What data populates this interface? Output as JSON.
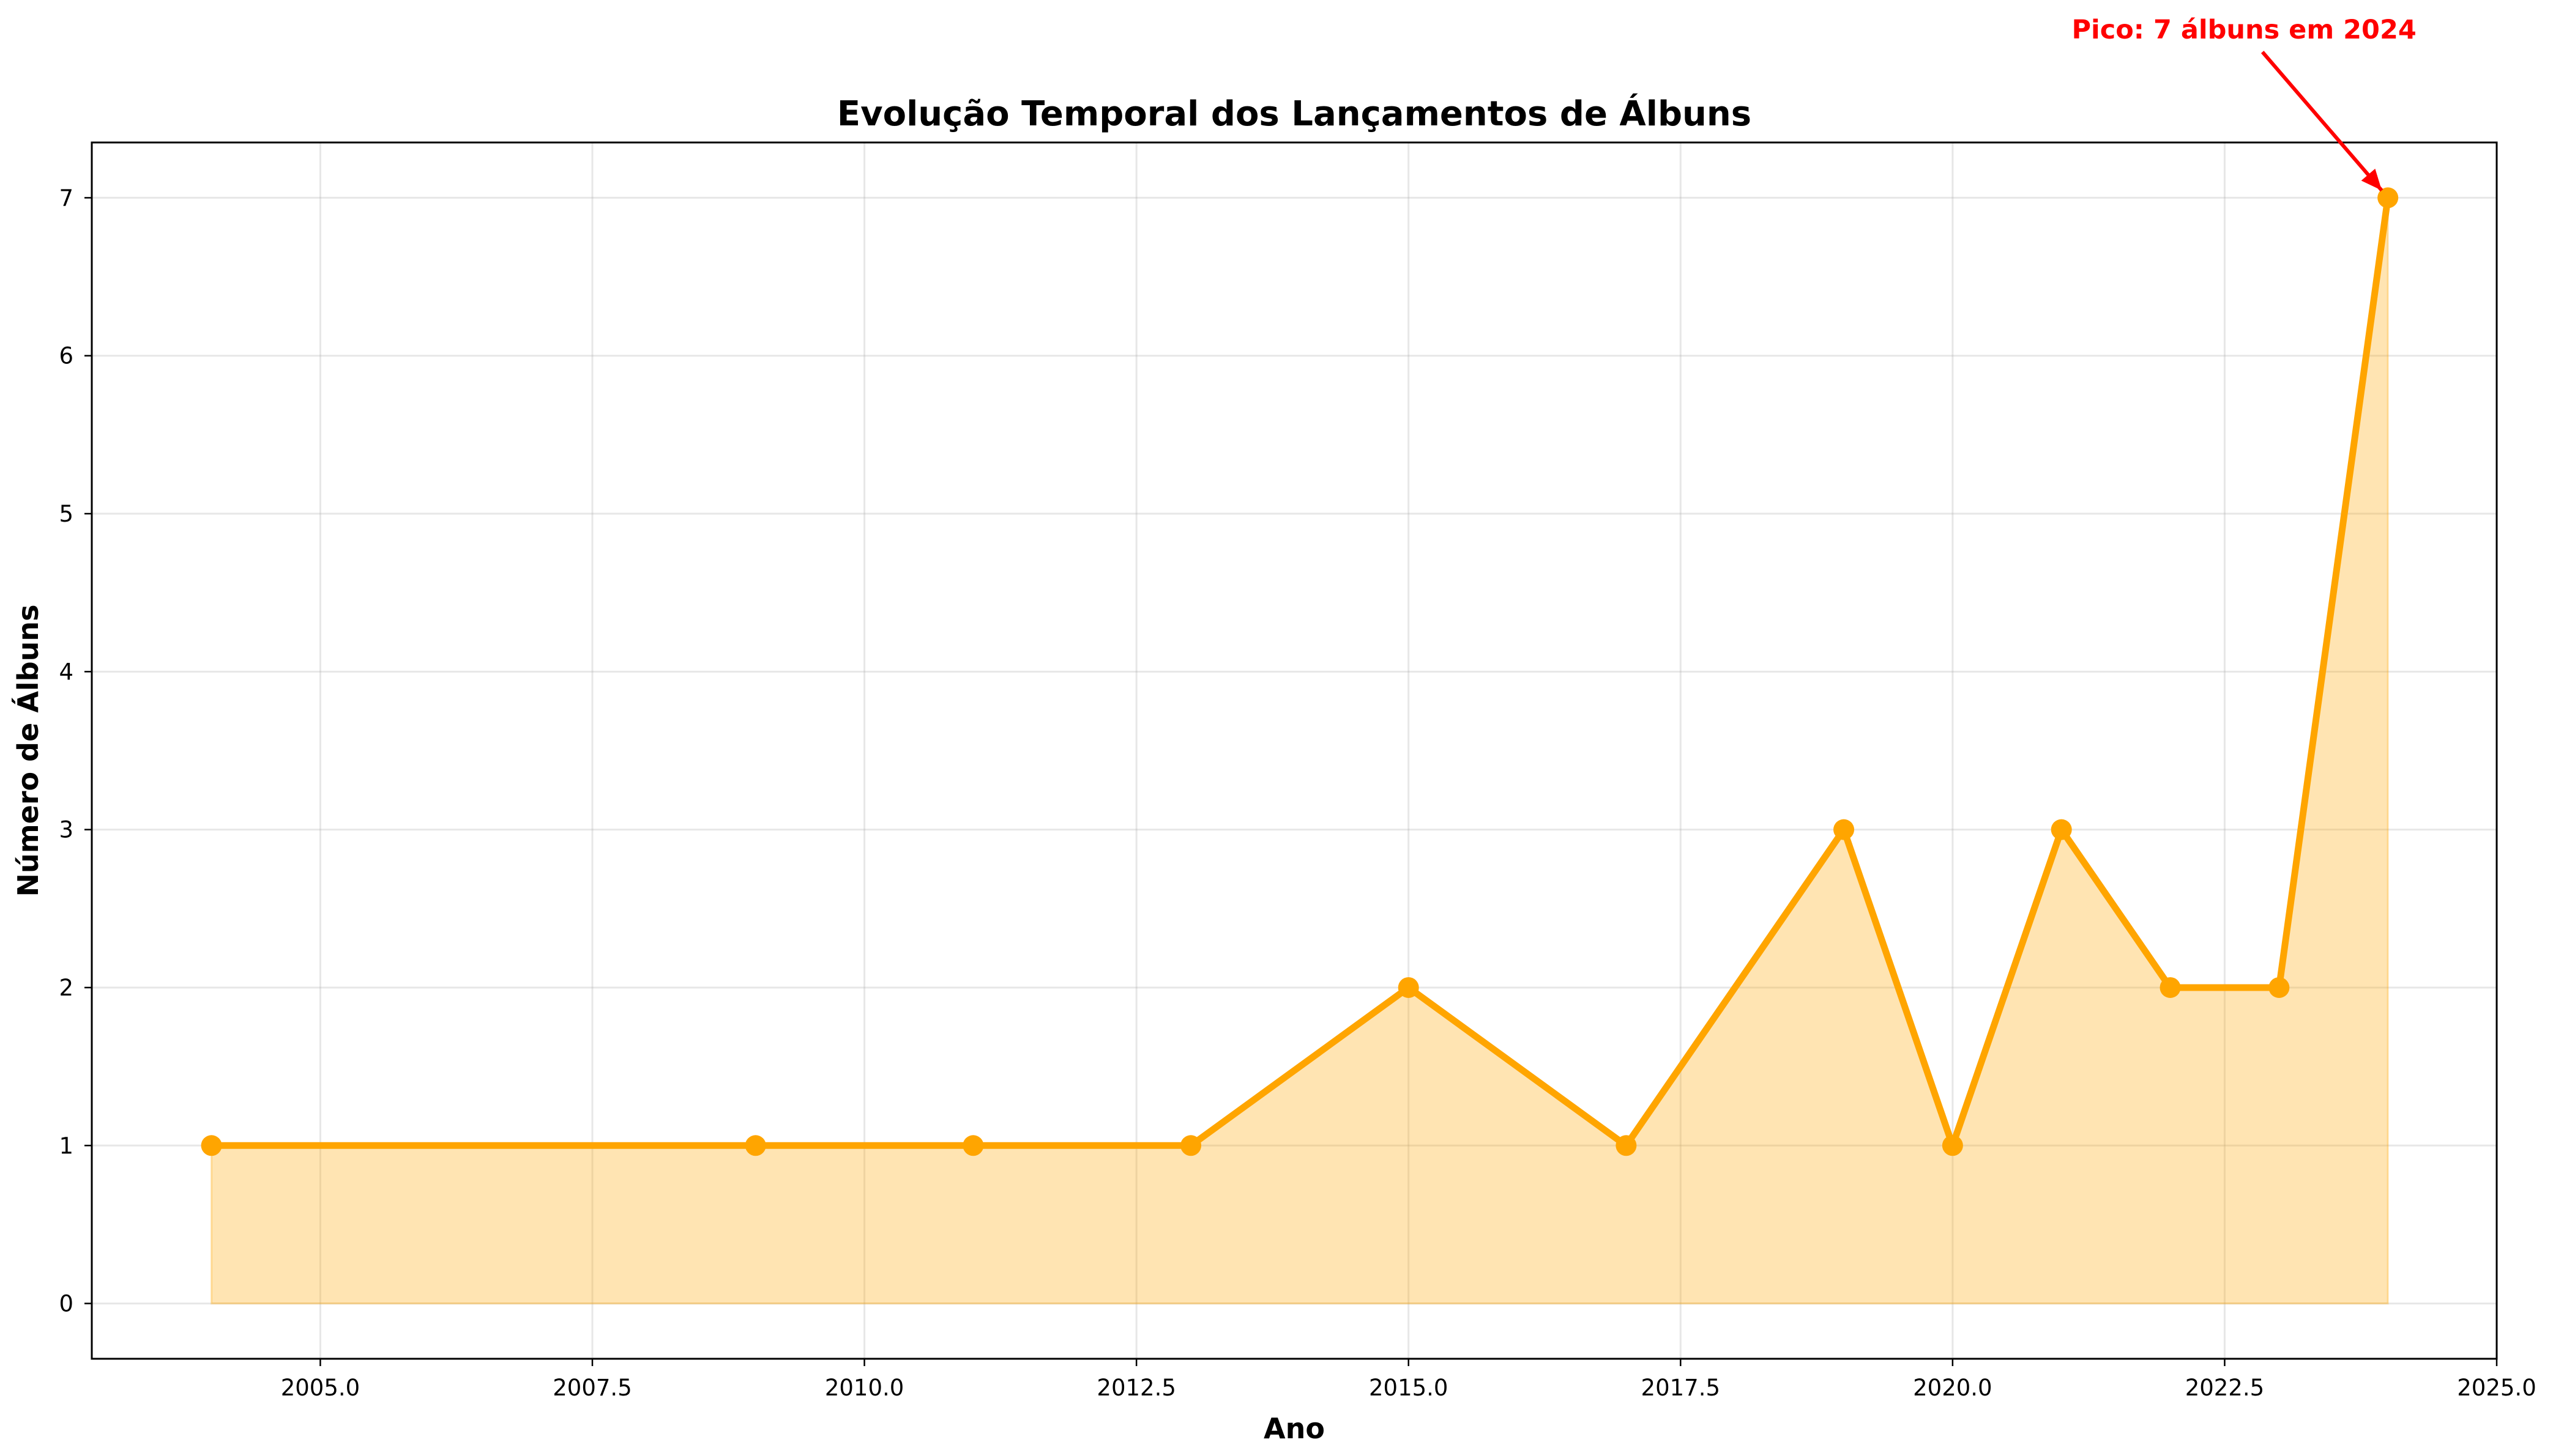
{
  "chart_data": {
    "type": "line",
    "title": "Evolução Temporal dos Lançamentos de Álbuns",
    "xlabel": "Ano",
    "ylabel": "Número de Álbuns",
    "xlim": [
      2002.9,
      2025.0
    ],
    "ylim": [
      -0.35,
      7.35
    ],
    "x_ticks": [
      2005.0,
      2007.5,
      2010.0,
      2012.5,
      2015.0,
      2017.5,
      2020.0,
      2022.5,
      2025.0
    ],
    "x_tick_labels": [
      "2005.0",
      "2007.5",
      "2010.0",
      "2012.5",
      "2015.0",
      "2017.5",
      "2020.0",
      "2022.5",
      "2025.0"
    ],
    "y_ticks": [
      0,
      1,
      2,
      3,
      4,
      5,
      6,
      7
    ],
    "y_tick_labels": [
      "0",
      "1",
      "2",
      "3",
      "4",
      "5",
      "6",
      "7"
    ],
    "grid": true,
    "area_fill": true,
    "series": [
      {
        "x": [
          2004,
          2009,
          2011,
          2013,
          2015,
          2017,
          2019,
          2020,
          2021,
          2022,
          2023,
          2024
        ],
        "values": [
          1,
          1,
          1,
          1,
          2,
          1,
          3,
          1,
          3,
          2,
          2,
          7
        ]
      }
    ],
    "annotations": [
      {
        "text": "Pico: 7 álbuns em 2024",
        "x": 2024,
        "y": 7
      }
    ],
    "colors": {
      "line": "#FFA500",
      "fill": "#FFA500",
      "annotation": "#FF0000"
    }
  }
}
